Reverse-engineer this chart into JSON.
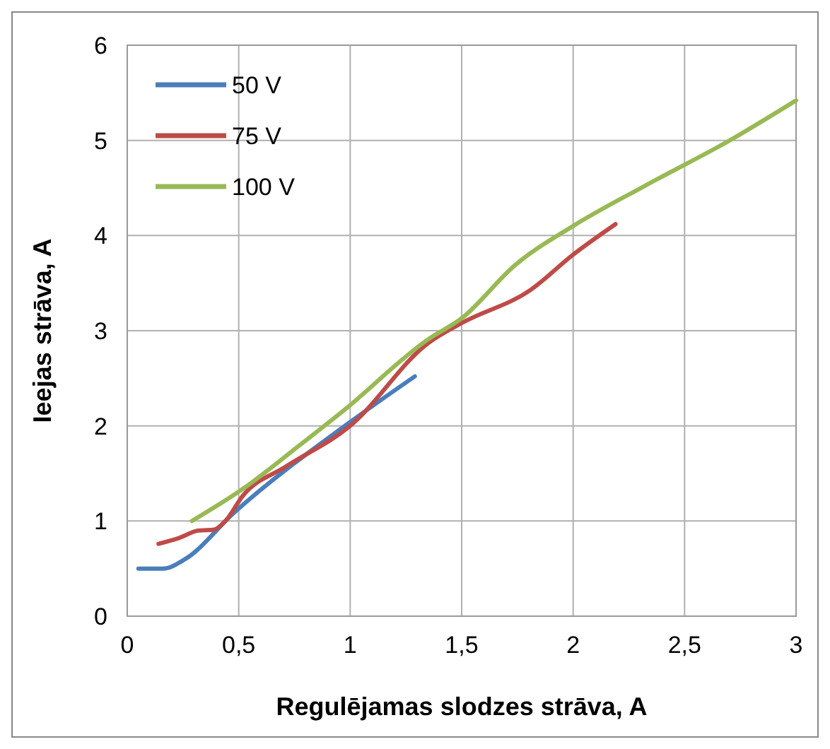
{
  "chart_data": {
    "type": "line",
    "xlabel": "Regulējamas slodzes strāva, A",
    "ylabel": "Ieejas strāva, A",
    "xlim": [
      0,
      3
    ],
    "xticks": [
      0,
      {
        "value": 0.5,
        "label": "0,5"
      },
      1,
      {
        "value": 1.5,
        "label": "1,5"
      },
      2,
      {
        "value": 2.5,
        "label": "2,5"
      },
      3
    ],
    "ylim": [
      0,
      6
    ],
    "yticks": [
      0,
      1,
      2,
      3,
      4,
      5,
      6
    ],
    "grid": true,
    "legend": "top left",
    "marker": "none",
    "line_style": "solid",
    "series": [
      {
        "name": "50 V",
        "color": "#4a7ebb",
        "x": [
          0.05,
          0.16,
          0.26,
          0.48,
          1.0,
          1.29
        ],
        "values": [
          0.5,
          0.5,
          0.6,
          1.09,
          2.04,
          2.52
        ]
      },
      {
        "name": "75 V",
        "color": "#be4b48",
        "x": [
          0.14,
          0.23,
          0.32,
          0.39,
          0.44,
          0.52,
          0.71,
          1.0,
          1.35,
          1.5,
          1.81,
          2.0,
          2.19
        ],
        "values": [
          0.76,
          0.82,
          0.9,
          0.91,
          1.0,
          1.27,
          1.57,
          2.0,
          2.87,
          3.08,
          3.43,
          3.8,
          4.12
        ]
      },
      {
        "name": "100 V",
        "color": "#98b954",
        "x": [
          0.29,
          0.52,
          0.77,
          0.97,
          1.35,
          1.5,
          1.74,
          2.0,
          2.32,
          2.71,
          3.0
        ],
        "values": [
          1.0,
          1.34,
          1.79,
          2.16,
          2.91,
          3.13,
          3.69,
          4.1,
          4.52,
          5.01,
          5.42
        ]
      }
    ]
  }
}
